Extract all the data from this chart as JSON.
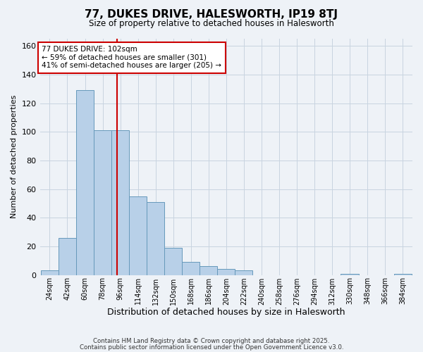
{
  "title": "77, DUKES DRIVE, HALESWORTH, IP19 8TJ",
  "subtitle": "Size of property relative to detached houses in Halesworth",
  "xlabel": "Distribution of detached houses by size in Halesworth",
  "ylabel": "Number of detached properties",
  "bin_labels": [
    "24sqm",
    "42sqm",
    "60sqm",
    "78sqm",
    "96sqm",
    "114sqm",
    "132sqm",
    "150sqm",
    "168sqm",
    "186sqm",
    "204sqm",
    "222sqm",
    "240sqm",
    "258sqm",
    "276sqm",
    "294sqm",
    "312sqm",
    "330sqm",
    "348sqm",
    "366sqm",
    "384sqm"
  ],
  "bin_edges": [
    24,
    42,
    60,
    78,
    96,
    114,
    132,
    150,
    168,
    186,
    204,
    222,
    240,
    258,
    276,
    294,
    312,
    330,
    348,
    366,
    384
  ],
  "bin_width": 18,
  "bar_heights": [
    3,
    26,
    129,
    101,
    101,
    55,
    51,
    19,
    9,
    6,
    4,
    3,
    0,
    0,
    0,
    0,
    0,
    1,
    0,
    0,
    1
  ],
  "bar_color": "#b8d0e8",
  "bar_edge_color": "#6699bb",
  "property_size": 102,
  "vline_color": "#cc0000",
  "annotation_line1": "77 DUKES DRIVE: 102sqm",
  "annotation_line2": "← 59% of detached houses are smaller (301)",
  "annotation_line3": "41% of semi-detached houses are larger (205) →",
  "annotation_box_facecolor": "#ffffff",
  "annotation_box_edgecolor": "#cc0000",
  "ylim": [
    0,
    165
  ],
  "yticks": [
    0,
    20,
    40,
    60,
    80,
    100,
    120,
    140,
    160
  ],
  "grid_color": "#c8d4e0",
  "background_color": "#eef2f7",
  "footer_line1": "Contains HM Land Registry data © Crown copyright and database right 2025.",
  "footer_line2": "Contains public sector information licensed under the Open Government Licence v3.0."
}
